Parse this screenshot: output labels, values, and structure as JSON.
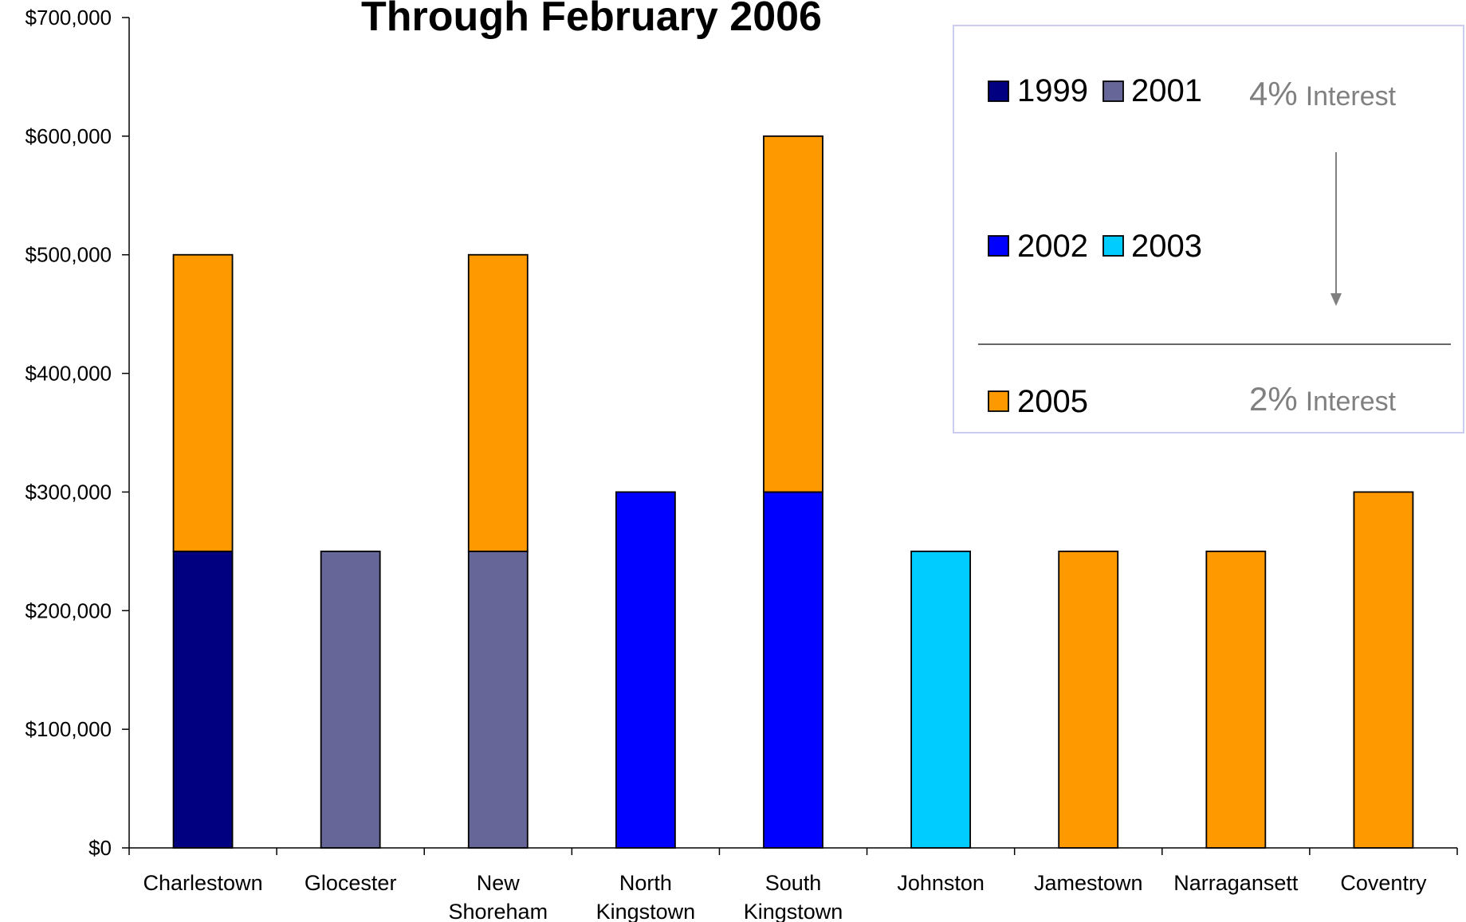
{
  "chart_data": {
    "type": "bar",
    "stacked": true,
    "title": "Through February 2006",
    "xlabel": "",
    "ylabel": "",
    "ylim": [
      0,
      700000
    ],
    "yticks": [
      "$0",
      "$100,000",
      "$200,000",
      "$300,000",
      "$400,000",
      "$500,000",
      "$600,000",
      "$700,000"
    ],
    "grid": false,
    "legend_position": "top-right",
    "categories": [
      [
        "Charlestown"
      ],
      [
        "Glocester"
      ],
      [
        "New",
        "Shoreham"
      ],
      [
        "North",
        "Kingstown"
      ],
      [
        "South",
        "Kingstown"
      ],
      [
        "Johnston"
      ],
      [
        "Jamestown"
      ],
      [
        "Narragansett"
      ],
      [
        "Coventry"
      ]
    ],
    "series": [
      {
        "name": "1999",
        "color": "#000080",
        "values": [
          250000,
          0,
          0,
          0,
          0,
          0,
          0,
          0,
          0
        ]
      },
      {
        "name": "2001",
        "color": "#666699",
        "values": [
          0,
          250000,
          250000,
          0,
          0,
          0,
          0,
          0,
          0
        ]
      },
      {
        "name": "2002",
        "color": "#0000FF",
        "values": [
          0,
          0,
          0,
          300000,
          300000,
          0,
          0,
          0,
          0
        ]
      },
      {
        "name": "2003",
        "color": "#00CCFF",
        "values": [
          0,
          0,
          0,
          0,
          0,
          250000,
          0,
          0,
          0
        ]
      },
      {
        "name": "2005",
        "color": "#FF9900",
        "values": [
          250000,
          0,
          250000,
          0,
          300000,
          0,
          250000,
          250000,
          300000
        ]
      }
    ],
    "legend_annotations": {
      "top_rate_number": "4%",
      "top_rate_word": "Interest",
      "bottom_rate_number": "2%",
      "bottom_rate_word": "Interest"
    }
  }
}
